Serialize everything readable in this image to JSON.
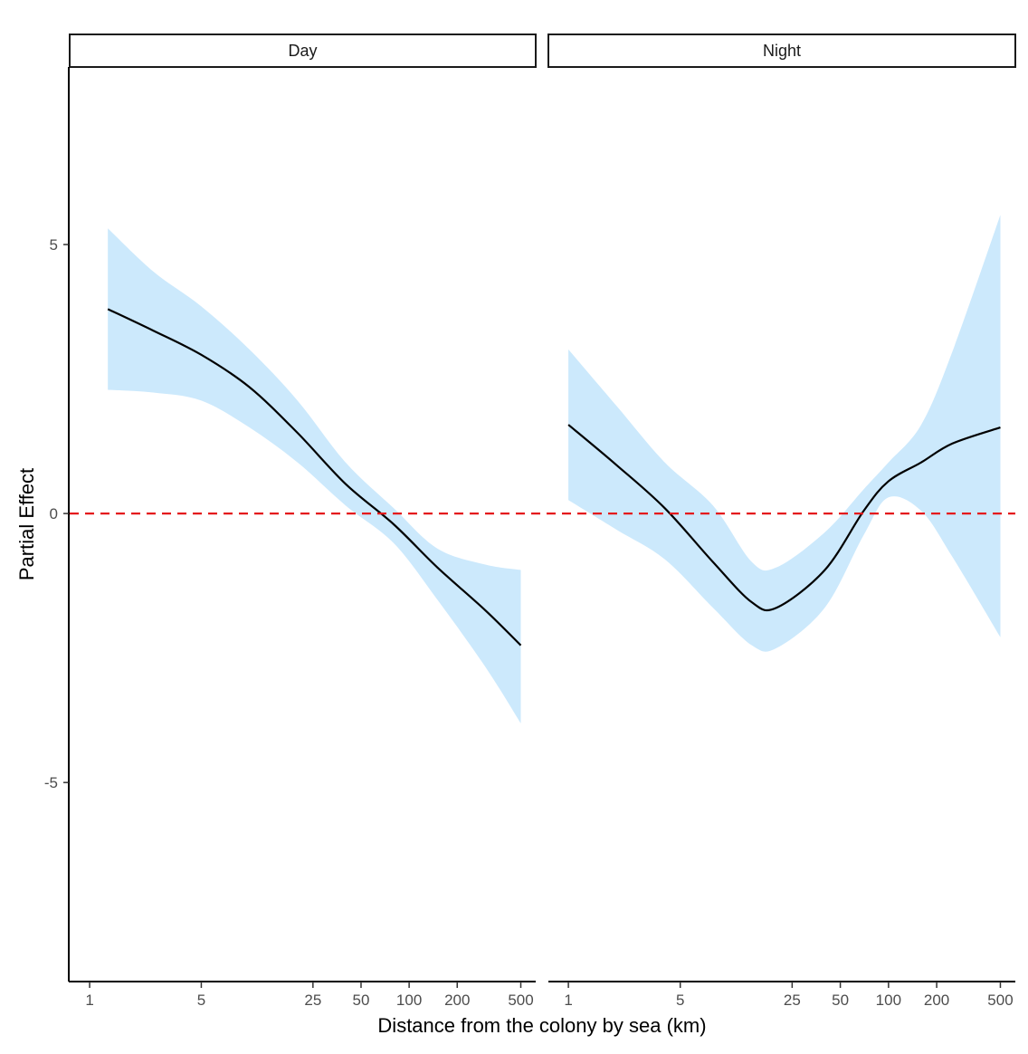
{
  "chart_data": {
    "type": "line",
    "xlabel": "Distance from the colony by sea (km)",
    "ylabel": "Partial Effect",
    "x_scale": "log",
    "x_ticks": [
      1,
      5,
      25,
      50,
      100,
      200,
      500
    ],
    "x_tick_labels": [
      "1",
      "5",
      "25",
      "50",
      "100",
      "200",
      "500"
    ],
    "y_ticks": [
      -5,
      0,
      5
    ],
    "y_tick_labels": [
      "-5",
      "0",
      "5"
    ],
    "ylim": [
      -8.7,
      8.3
    ],
    "xlim": [
      0.75,
      620
    ],
    "grid": false,
    "reference_line": {
      "y": 0,
      "color": "#e41a1c",
      "style": "dashed"
    },
    "colors": {
      "fit": "#000000",
      "band": "#cce9fc",
      "reference": "#e41a1c"
    },
    "panels": [
      {
        "name": "Day",
        "x": [
          1.3,
          2.5,
          5,
          10,
          20,
          40,
          80,
          150,
          300,
          500
        ],
        "fit": [
          3.8,
          3.4,
          2.95,
          2.35,
          1.5,
          0.55,
          -0.2,
          -1.0,
          -1.8,
          -2.45
        ],
        "lower": [
          2.3,
          2.25,
          2.1,
          1.6,
          0.95,
          0.15,
          -0.55,
          -1.6,
          -2.85,
          -3.9
        ],
        "upper": [
          5.3,
          4.5,
          3.85,
          3.05,
          2.1,
          0.95,
          0.1,
          -0.65,
          -0.95,
          -1.05
        ]
      },
      {
        "name": "Night",
        "x": [
          1.0,
          2.0,
          4.0,
          8.0,
          14.0,
          20.0,
          40.0,
          70.0,
          100.0,
          160.0,
          250.0,
          500.0
        ],
        "fit": [
          1.65,
          0.9,
          0.1,
          -0.9,
          -1.65,
          -1.75,
          -1.05,
          0.05,
          0.6,
          0.95,
          1.3,
          1.6
        ],
        "lower": [
          0.25,
          -0.3,
          -0.85,
          -1.75,
          -2.45,
          -2.5,
          -1.75,
          -0.4,
          0.3,
          0.05,
          -0.8,
          -2.3
        ],
        "upper": [
          3.05,
          2.0,
          0.95,
          0.15,
          -0.9,
          -1.0,
          -0.35,
          0.45,
          0.95,
          1.65,
          3.0,
          5.55
        ]
      }
    ]
  }
}
